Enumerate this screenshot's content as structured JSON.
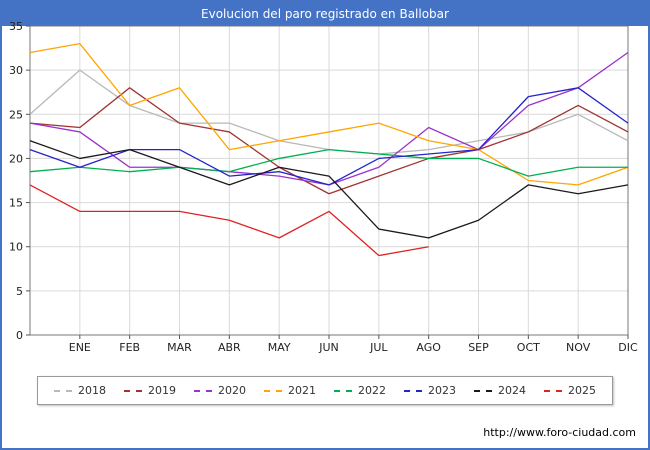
{
  "title_bar": {
    "text": "Evolucion del paro registrado en Ballobar"
  },
  "footer": {
    "url": "http://www.foro-ciudad.com"
  },
  "chart_data": {
    "type": "line",
    "title": "Evolucion del paro registrado en Ballobar",
    "categories": [
      "",
      "ENE",
      "FEB",
      "MAR",
      "ABR",
      "MAY",
      "JUN",
      "JUL",
      "AGO",
      "SEP",
      "OCT",
      "NOV",
      "DIC"
    ],
    "x_note": "first value of each series is plotted on the y-axis edge before the ENE tick",
    "ylim": [
      0,
      35
    ],
    "yticks": [
      0,
      5,
      10,
      15,
      20,
      25,
      30,
      35
    ],
    "grid": true,
    "legend_position": "bottom",
    "series": [
      {
        "name": "2018",
        "color": "#b8b8b8",
        "values": [
          25,
          30,
          26,
          24,
          24,
          22,
          21,
          20.5,
          21,
          22,
          23,
          25,
          22
        ]
      },
      {
        "name": "2019",
        "color": "#a03333",
        "values": [
          24,
          23.5,
          28,
          24,
          23,
          19,
          16,
          18,
          20,
          21,
          23,
          26,
          23
        ]
      },
      {
        "name": "2020",
        "color": "#9933cc",
        "values": [
          24,
          23,
          19,
          19,
          18.5,
          18,
          17,
          19,
          23.5,
          21,
          26,
          28,
          32
        ]
      },
      {
        "name": "2021",
        "color": "#ffa500",
        "values": [
          32,
          33,
          26,
          28,
          21,
          22,
          23,
          24,
          22,
          21,
          17.5,
          17,
          19
        ]
      },
      {
        "name": "2022",
        "color": "#00b050",
        "values": [
          18.5,
          19,
          18.5,
          19,
          18.5,
          20,
          21,
          20.5,
          20,
          20,
          18,
          19,
          19
        ]
      },
      {
        "name": "2023",
        "color": "#2424cc",
        "values": [
          21,
          19,
          21,
          21,
          18,
          18.5,
          17,
          20,
          20.5,
          21,
          27,
          28,
          24
        ]
      },
      {
        "name": "2024",
        "color": "#1a1a1a",
        "values": [
          22,
          20,
          21,
          19,
          17,
          19,
          18,
          12,
          11,
          13,
          17,
          16,
          17
        ]
      },
      {
        "name": "2025",
        "color": "#e02222",
        "values": [
          17,
          14,
          14,
          14,
          13,
          11,
          14,
          9,
          10
        ]
      }
    ]
  }
}
